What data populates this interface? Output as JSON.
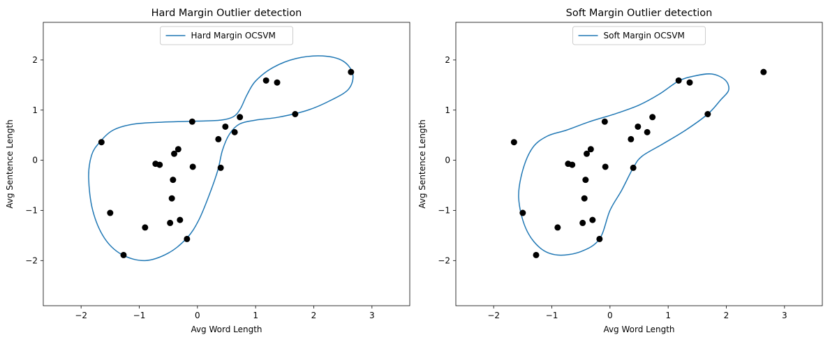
{
  "chart_data": [
    {
      "type": "scatter",
      "title": "Hard Margin Outlier detection",
      "xlabel": "Avg Word Length",
      "ylabel": "Avg Sentence Length",
      "xlim": [
        -2.65,
        3.65
      ],
      "ylim": [
        -2.9,
        2.75
      ],
      "xticks": [
        -2,
        -1,
        0,
        1,
        2,
        3
      ],
      "yticks": [
        -2,
        -1,
        0,
        1,
        2
      ],
      "grid": false,
      "legend_position": "top-center",
      "series": [
        {
          "name": "Hard Margin OCSVM",
          "type": "line",
          "color": "#1f77b4",
          "closed": true,
          "points": [
            [
              -1.68,
              0.36
            ],
            [
              -1.45,
              0.6
            ],
            [
              -1.1,
              0.72
            ],
            [
              -0.6,
              0.76
            ],
            [
              0,
              0.78
            ],
            [
              0.4,
              0.8
            ],
            [
              0.62,
              0.87
            ],
            [
              0.74,
              1.03
            ],
            [
              0.85,
              1.3
            ],
            [
              1.0,
              1.58
            ],
            [
              1.3,
              1.85
            ],
            [
              1.7,
              2.03
            ],
            [
              2.15,
              2.08
            ],
            [
              2.5,
              1.98
            ],
            [
              2.67,
              1.72
            ],
            [
              2.6,
              1.42
            ],
            [
              2.3,
              1.2
            ],
            [
              1.9,
              1.0
            ],
            [
              1.4,
              0.86
            ],
            [
              1.0,
              0.8
            ],
            [
              0.72,
              0.72
            ],
            [
              0.55,
              0.52
            ],
            [
              0.43,
              0.2
            ],
            [
              0.35,
              -0.2
            ],
            [
              0.2,
              -0.7
            ],
            [
              0.02,
              -1.2
            ],
            [
              -0.18,
              -1.55
            ],
            [
              -0.5,
              -1.85
            ],
            [
              -0.9,
              -2.0
            ],
            [
              -1.3,
              -1.88
            ],
            [
              -1.6,
              -1.55
            ],
            [
              -1.8,
              -1.0
            ],
            [
              -1.87,
              -0.35
            ],
            [
              -1.82,
              0.1
            ]
          ]
        },
        {
          "name": "",
          "type": "scatter",
          "color": "#000000",
          "points": [
            [
              -1.65,
              0.36
            ],
            [
              -1.5,
              -1.05
            ],
            [
              -1.27,
              -1.89
            ],
            [
              -0.9,
              -1.34
            ],
            [
              -0.72,
              -0.07
            ],
            [
              -0.65,
              -0.09
            ],
            [
              -0.47,
              -1.25
            ],
            [
              -0.44,
              -0.76
            ],
            [
              -0.42,
              -0.39
            ],
            [
              -0.4,
              0.13
            ],
            [
              -0.33,
              0.22
            ],
            [
              -0.3,
              -1.19
            ],
            [
              -0.18,
              -1.57
            ],
            [
              -0.09,
              0.77
            ],
            [
              -0.08,
              -0.13
            ],
            [
              0.36,
              0.42
            ],
            [
              0.4,
              -0.15
            ],
            [
              0.48,
              0.67
            ],
            [
              0.64,
              0.56
            ],
            [
              0.73,
              0.86
            ],
            [
              1.18,
              1.59
            ],
            [
              1.37,
              1.55
            ],
            [
              1.68,
              0.92
            ],
            [
              2.64,
              1.76
            ]
          ]
        }
      ]
    },
    {
      "type": "scatter",
      "title": "Soft Margin Outlier detection",
      "xlabel": "Avg Word Length",
      "ylabel": "Avg Sentence Length",
      "xlim": [
        -2.65,
        3.65
      ],
      "ylim": [
        -2.9,
        2.75
      ],
      "xticks": [
        -2,
        -1,
        0,
        1,
        2,
        3
      ],
      "yticks": [
        -2,
        -1,
        0,
        1,
        2
      ],
      "grid": false,
      "legend_position": "top-center",
      "series": [
        {
          "name": "Soft Margin OCSVM",
          "type": "line",
          "color": "#1f77b4",
          "closed": true,
          "points": [
            [
              -1.08,
              0.48
            ],
            [
              -0.75,
              0.6
            ],
            [
              -0.35,
              0.77
            ],
            [
              0.1,
              0.93
            ],
            [
              0.5,
              1.1
            ],
            [
              0.85,
              1.32
            ],
            [
              1.18,
              1.58
            ],
            [
              1.45,
              1.68
            ],
            [
              1.75,
              1.72
            ],
            [
              1.98,
              1.6
            ],
            [
              2.04,
              1.4
            ],
            [
              1.9,
              1.2
            ],
            [
              1.68,
              0.92
            ],
            [
              1.3,
              0.6
            ],
            [
              0.9,
              0.32
            ],
            [
              0.55,
              0.08
            ],
            [
              0.4,
              -0.15
            ],
            [
              0.2,
              -0.6
            ],
            [
              0.0,
              -1.0
            ],
            [
              -0.18,
              -1.57
            ],
            [
              -0.5,
              -1.82
            ],
            [
              -0.9,
              -1.89
            ],
            [
              -1.2,
              -1.75
            ],
            [
              -1.45,
              -1.35
            ],
            [
              -1.57,
              -0.75
            ],
            [
              -1.5,
              -0.2
            ],
            [
              -1.33,
              0.25
            ]
          ]
        },
        {
          "name": "",
          "type": "scatter",
          "color": "#000000",
          "points": [
            [
              -1.65,
              0.36
            ],
            [
              -1.5,
              -1.05
            ],
            [
              -1.27,
              -1.89
            ],
            [
              -0.9,
              -1.34
            ],
            [
              -0.72,
              -0.07
            ],
            [
              -0.65,
              -0.09
            ],
            [
              -0.47,
              -1.25
            ],
            [
              -0.44,
              -0.76
            ],
            [
              -0.42,
              -0.39
            ],
            [
              -0.4,
              0.13
            ],
            [
              -0.33,
              0.22
            ],
            [
              -0.3,
              -1.19
            ],
            [
              -0.18,
              -1.57
            ],
            [
              -0.09,
              0.77
            ],
            [
              -0.08,
              -0.13
            ],
            [
              0.36,
              0.42
            ],
            [
              0.4,
              -0.15
            ],
            [
              0.48,
              0.67
            ],
            [
              0.64,
              0.56
            ],
            [
              0.73,
              0.86
            ],
            [
              1.18,
              1.59
            ],
            [
              1.37,
              1.55
            ],
            [
              1.68,
              0.92
            ],
            [
              2.64,
              1.76
            ]
          ]
        }
      ]
    }
  ]
}
